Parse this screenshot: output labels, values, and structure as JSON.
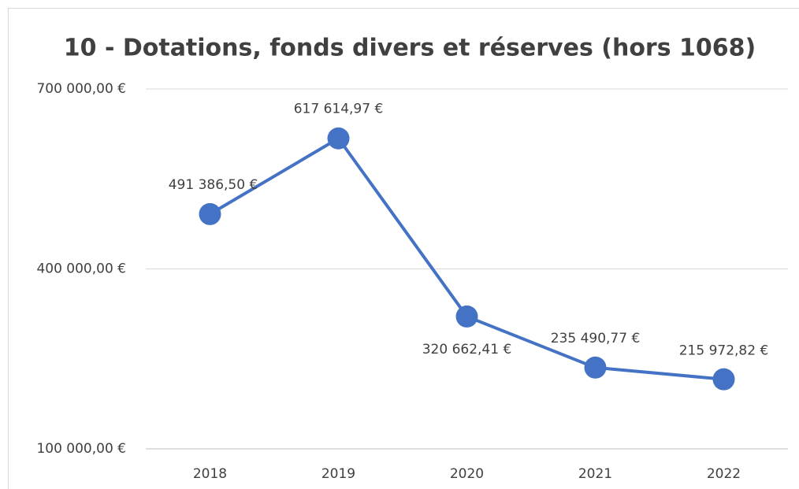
{
  "chart_data": {
    "type": "line",
    "title": "10 - Dotations, fonds divers et réserves (hors 1068)",
    "categories": [
      "2018",
      "2019",
      "2020",
      "2021",
      "2022"
    ],
    "series": [
      {
        "name": "10 - Dotations, fonds divers et réserves (hors 1068)",
        "color": "#4472c4",
        "values": [
          491386.5,
          617614.97,
          320662.41,
          235490.77,
          215972.82
        ],
        "value_labels": [
          "491 386,50 €",
          "617 614,97 €",
          "320 662,41 €",
          "235 490,77 €",
          "215 972,82 €"
        ]
      }
    ],
    "ylim": [
      100000,
      700000
    ],
    "yticks": [
      {
        "value": 100000,
        "label": "100 000,00 €"
      },
      {
        "value": 400000,
        "label": "400 000,00 €"
      },
      {
        "value": 700000,
        "label": "700 000,00 €"
      }
    ],
    "grid": true
  }
}
